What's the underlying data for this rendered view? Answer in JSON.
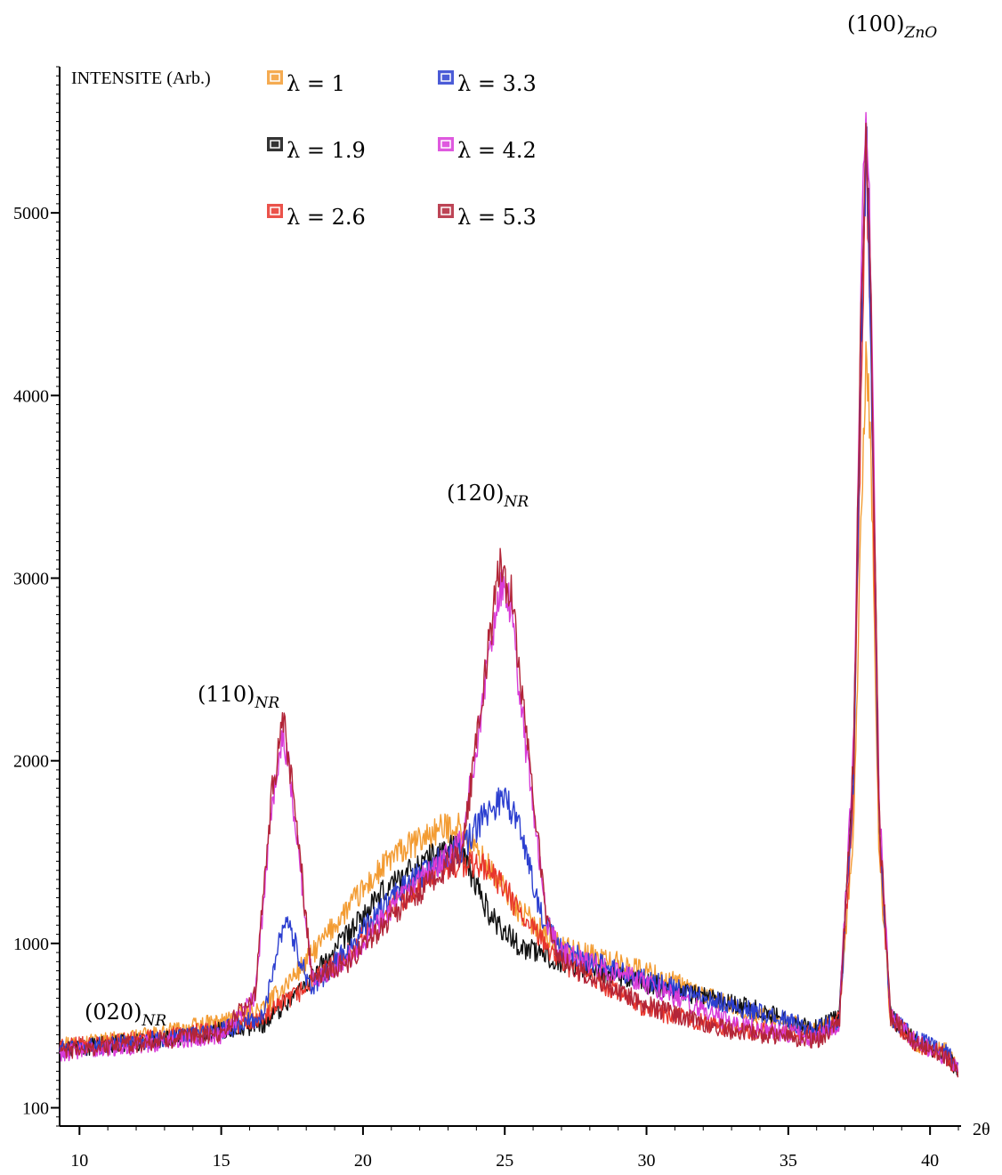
{
  "chart_data": {
    "type": "line",
    "ylabel": "INTENSITE (Arb.)",
    "xlabel": "2θ",
    "xlim": [
      9.3,
      41
    ],
    "ylim": [
      0,
      5800
    ],
    "x_ticks": [
      "10",
      "15",
      "20",
      "25",
      "30",
      "35",
      "40"
    ],
    "y_ticks": [
      "100",
      "1000",
      "2000",
      "3000",
      "4000",
      "5000"
    ],
    "x_tick_values": [
      10,
      15,
      20,
      25,
      30,
      35,
      40
    ],
    "y_tick_values": [
      100,
      1000,
      2000,
      3000,
      4000,
      5000
    ],
    "grid": false,
    "legend_placement": "top-left",
    "series": [
      {
        "name": "λ = 1",
        "color": "#f39c33",
        "x": [
          9.3,
          12,
          15,
          16.5,
          18,
          19.5,
          21,
          22.5,
          23.3,
          24.5,
          25.5,
          27,
          30,
          33,
          36,
          36.8,
          37.3,
          37.6,
          37.75,
          37.9,
          38.2,
          38.6,
          39.5,
          40.5,
          41
        ],
        "y": [
          450,
          480,
          570,
          640,
          900,
          1200,
          1470,
          1610,
          1650,
          1400,
          1180,
          980,
          850,
          650,
          520,
          580,
          1600,
          3500,
          4200,
          3800,
          1500,
          600,
          450,
          420,
          320
        ]
      },
      {
        "name": "λ = 1.9",
        "color": "#111111",
        "x": [
          9.3,
          12,
          15,
          16.5,
          18,
          19.5,
          21,
          22.5,
          23.3,
          24.5,
          25.5,
          27,
          30,
          33,
          36,
          36.8,
          37.3,
          37.6,
          37.75,
          37.9,
          38.2,
          38.6,
          39.5,
          40.5,
          41
        ],
        "y": [
          420,
          460,
          520,
          560,
          780,
          1050,
          1330,
          1480,
          1550,
          1150,
          990,
          900,
          780,
          680,
          530,
          600,
          2000,
          4600,
          5500,
          4600,
          1700,
          600,
          460,
          400,
          300
        ]
      },
      {
        "name": "λ = 2.6",
        "color": "#e8352c",
        "x": [
          9.3,
          12,
          15,
          16.5,
          18,
          19.5,
          21,
          22.5,
          23.3,
          24.3,
          25,
          25.8,
          27,
          30,
          33,
          36,
          36.8,
          37.3,
          37.6,
          37.75,
          37.9,
          38.2,
          38.6,
          39.5,
          40.5,
          41
        ],
        "y": [
          430,
          470,
          530,
          590,
          760,
          950,
          1200,
          1380,
          1440,
          1420,
          1300,
          1100,
          900,
          640,
          530,
          500,
          580,
          1800,
          4200,
          5300,
          4300,
          1600,
          600,
          450,
          400,
          300
        ]
      },
      {
        "name": "λ = 3.3",
        "color": "#2c3fd0",
        "x": [
          9.3,
          12,
          15,
          16.5,
          17,
          17.3,
          17.7,
          18.2,
          19.5,
          21,
          22.5,
          23.5,
          24.3,
          25,
          25.6,
          26.3,
          27,
          30,
          33,
          36,
          36.8,
          37.3,
          37.6,
          37.75,
          37.9,
          38.2,
          38.6,
          39.5,
          40.5,
          41
        ],
        "y": [
          420,
          460,
          520,
          600,
          1000,
          1150,
          950,
          750,
          980,
          1250,
          1430,
          1520,
          1700,
          1820,
          1600,
          1150,
          960,
          800,
          660,
          530,
          580,
          1900,
          4500,
          5400,
          4500,
          1700,
          600,
          470,
          420,
          320
        ]
      },
      {
        "name": "λ = 4.2",
        "color": "#d93cd9",
        "x": [
          9.3,
          12,
          15,
          16.2,
          16.8,
          17.2,
          17.6,
          18.2,
          19.5,
          21,
          22.5,
          23.5,
          24.2,
          24.8,
          25.2,
          25.8,
          26.5,
          27,
          30,
          33,
          36,
          36.8,
          37.3,
          37.6,
          37.75,
          37.9,
          38.2,
          38.6,
          39.5,
          40.5,
          41
        ],
        "y": [
          400,
          440,
          500,
          700,
          1800,
          2150,
          1700,
          800,
          920,
          1200,
          1400,
          1550,
          2300,
          2950,
          2850,
          2000,
          1100,
          950,
          780,
          560,
          480,
          560,
          2100,
          4800,
          5700,
          4800,
          1800,
          600,
          460,
          380,
          300
        ]
      },
      {
        "name": "λ = 5.3",
        "color": "#b22538",
        "x": [
          9.3,
          12,
          15,
          16.2,
          16.8,
          17.2,
          17.6,
          18.2,
          19.5,
          21,
          22.5,
          23.5,
          24.2,
          24.8,
          25.2,
          25.8,
          26.5,
          27,
          30,
          33,
          36,
          36.8,
          37.3,
          37.6,
          37.75,
          37.9,
          38.2,
          38.6,
          39.5,
          40.5,
          41
        ],
        "y": [
          410,
          450,
          510,
          720,
          1850,
          2200,
          1750,
          820,
          900,
          1150,
          1350,
          1500,
          2350,
          3050,
          2950,
          2100,
          1100,
          900,
          660,
          520,
          470,
          560,
          2000,
          4700,
          5500,
          4700,
          1700,
          600,
          450,
          390,
          300
        ]
      }
    ],
    "annotations": [
      {
        "base": "(100)",
        "sub": "ZnO",
        "x": 37.8,
        "y": 5800
      },
      {
        "base": "(120)",
        "sub": "NR",
        "x": 24.9,
        "y": 3250
      },
      {
        "base": "(110)",
        "sub": "NR",
        "x": 17.0,
        "y": 2350
      },
      {
        "base": "(020)",
        "sub": "NR",
        "x": 11.8,
        "y": 560
      }
    ]
  }
}
